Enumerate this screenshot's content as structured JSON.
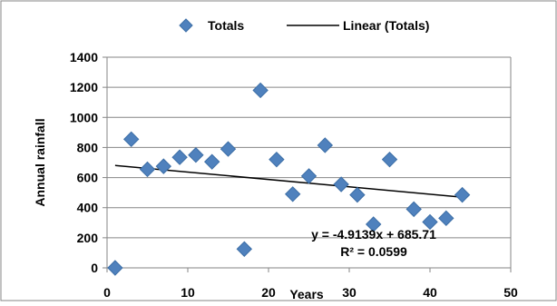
{
  "chart_data": {
    "type": "scatter",
    "title": "",
    "xlabel": "Years",
    "ylabel": "Annual rainfall",
    "xlim": [
      0,
      50
    ],
    "ylim": [
      0,
      1400
    ],
    "xticks": [
      "0",
      "10",
      "20",
      "30",
      "40",
      "50"
    ],
    "yticks": [
      "0",
      "200",
      "400",
      "600",
      "800",
      "1000",
      "1200",
      "1400"
    ],
    "grid": "horizontal",
    "legend_position": "top",
    "legend": {
      "series_label": "Totals",
      "trend_label": "Linear (Totals)"
    },
    "series": [
      {
        "name": "Totals",
        "color": "#4f81bd",
        "marker": "diamond",
        "x": [
          1,
          3,
          5,
          7,
          9,
          11,
          13,
          15,
          17,
          19,
          21,
          23,
          25,
          27,
          29,
          31,
          33,
          35,
          38,
          40,
          42,
          44
        ],
        "y": [
          0,
          855,
          655,
          675,
          735,
          750,
          705,
          790,
          125,
          1180,
          720,
          490,
          610,
          815,
          555,
          485,
          290,
          720,
          390,
          305,
          330,
          485
        ]
      }
    ],
    "trendline": {
      "type": "linear",
      "slope": -4.9139,
      "intercept": 685.71,
      "x_range": [
        1,
        44
      ],
      "color": "#000000",
      "equation_label": "y = -4.9139x + 685.71",
      "r2_label": "R² = 0.0599"
    }
  }
}
